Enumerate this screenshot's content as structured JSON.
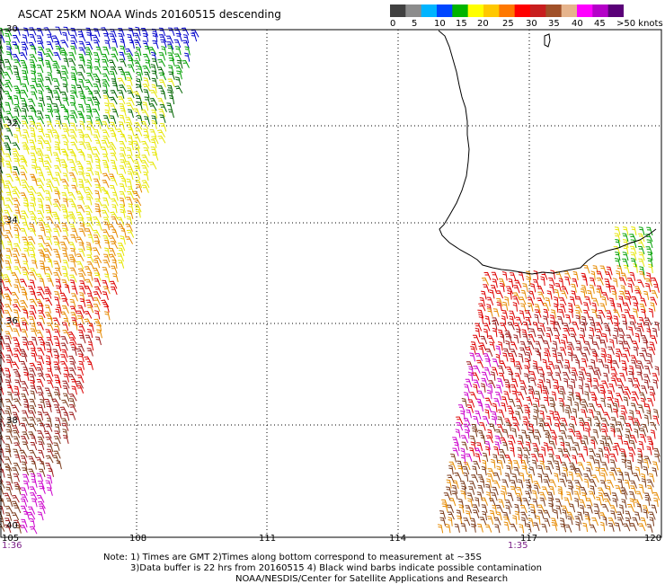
{
  "title": "ASCAT 25KM NOAA Winds 20160515 descending",
  "colorbar": {
    "colors": [
      "#404040",
      "#8c8c8c",
      "#00b4ff",
      "#0046ff",
      "#00b400",
      "#ffff00",
      "#ffc800",
      "#ff7800",
      "#ff0000",
      "#c81e1e",
      "#a05028",
      "#e6b48c",
      "#ff00ff",
      "#b400c8",
      "#5a0078"
    ],
    "labels": [
      "0",
      "5",
      "10",
      "15",
      "20",
      "25",
      "30",
      "35",
      "40",
      "45",
      ">50 knots"
    ]
  },
  "map": {
    "longitudes": [
      "105",
      "108",
      "111",
      "114",
      "117",
      "120"
    ],
    "latitudes": [
      "30",
      "32",
      "34",
      "36",
      "38",
      "40"
    ],
    "times": [
      "1:36",
      "1:35"
    ]
  },
  "notes": {
    "line1": "Note: 1) Times are GMT 2)Times along bottom correspond to measurement at ~35S",
    "line2": "3)Data buffer is 22 hrs from 20160515 4) Black wind barbs indicate possible contamination",
    "line3": "NOAA/NESDIS/Center for Satellite Applications and Research"
  },
  "barb_colors": {
    "blue": "#0000cc",
    "green": "#00a000",
    "dark_green": "#006400",
    "yellow": "#e6e600",
    "orange": "#e68a00",
    "red": "#dd0000",
    "dark_red": "#9b1b1b",
    "brown": "#7a3a1a",
    "magenta": "#cc00cc",
    "black": "#000000"
  }
}
